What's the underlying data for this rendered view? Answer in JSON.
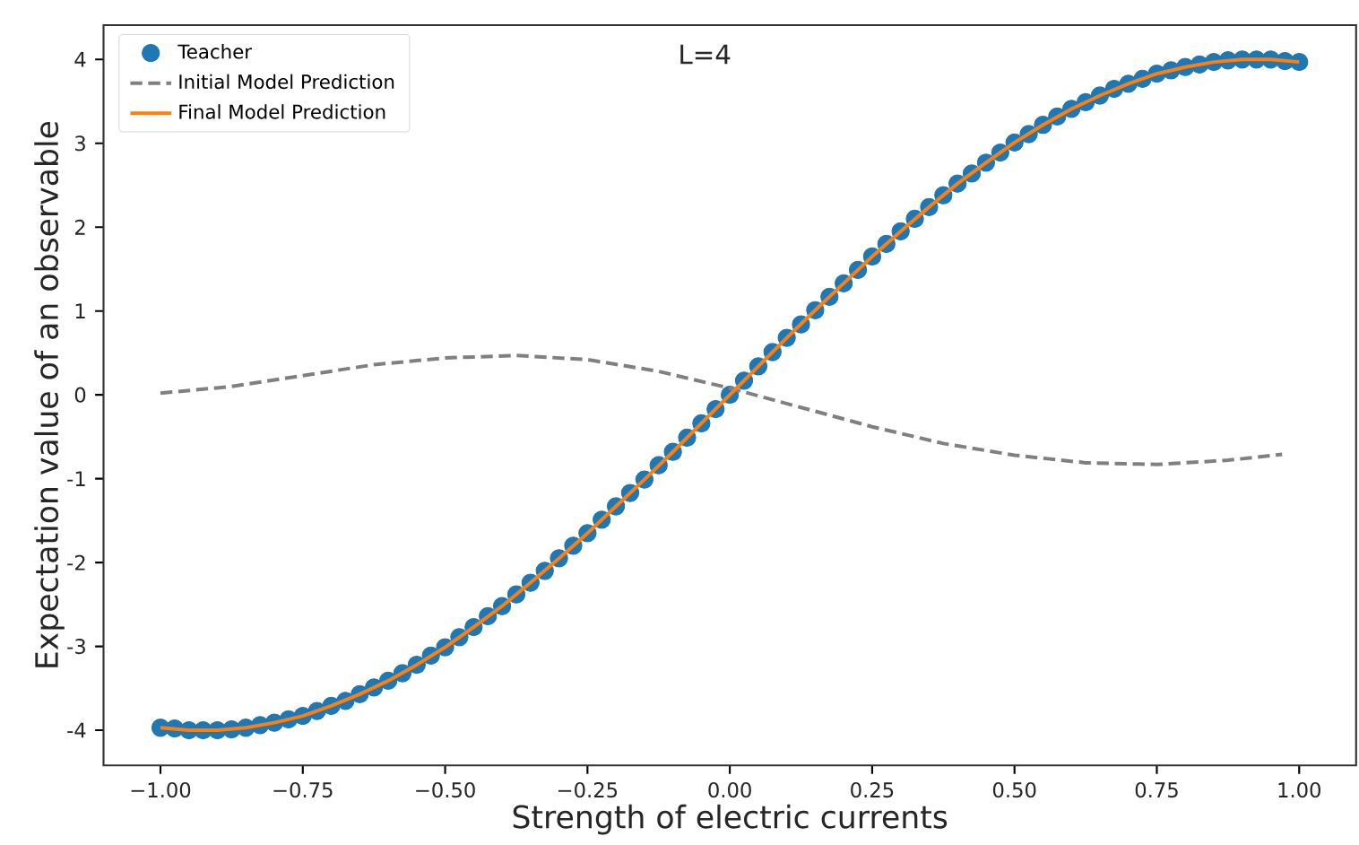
{
  "chart_data": {
    "type": "line",
    "xlabel": "Strength of electric currents",
    "ylabel": "Expectation value of an observable",
    "annotations": [
      "L=4"
    ],
    "xlim": [
      -1.1,
      1.1
    ],
    "ylim": [
      -4.42,
      4.41
    ],
    "xticks": [
      {
        "value": -1,
        "label": "−1.00"
      },
      {
        "value": -0.75,
        "label": "−0.75"
      },
      {
        "value": -0.5,
        "label": "−0.50"
      },
      {
        "value": -0.25,
        "label": "−0.25"
      },
      {
        "value": 0,
        "label": "0.00"
      },
      {
        "value": 0.25,
        "label": "0.25"
      },
      {
        "value": 0.5,
        "label": "0.50"
      },
      {
        "value": 0.75,
        "label": "0.75"
      },
      {
        "value": 1,
        "label": "1.00"
      }
    ],
    "yticks": [
      -4,
      -3,
      -2,
      -1,
      0,
      1,
      2,
      3,
      4
    ],
    "grid": false,
    "legend": "top left",
    "series": [
      {
        "name": "Teacher",
        "type": "scatter",
        "marker": "circle",
        "color": "#1f77b4",
        "x": [
          -1,
          -0.975,
          -0.95,
          -0.925,
          -0.9,
          -0.875,
          -0.85,
          -0.825,
          -0.8,
          -0.775,
          -0.75,
          -0.725,
          -0.7,
          -0.675,
          -0.65,
          -0.625,
          -0.6,
          -0.575,
          -0.55,
          -0.525,
          -0.5,
          -0.475,
          -0.45,
          -0.425,
          -0.4,
          -0.375,
          -0.35,
          -0.325,
          -0.3,
          -0.275,
          -0.25,
          -0.225,
          -0.2,
          -0.175,
          -0.15,
          -0.125,
          -0.1,
          -0.075,
          -0.05,
          -0.025,
          0,
          0.025,
          0.05,
          0.075,
          0.1,
          0.125,
          0.15,
          0.175,
          0.2,
          0.225,
          0.25,
          0.275,
          0.3,
          0.325,
          0.35,
          0.375,
          0.4,
          0.425,
          0.45,
          0.475,
          0.5,
          0.525,
          0.55,
          0.575,
          0.6,
          0.625,
          0.65,
          0.675,
          0.7,
          0.725,
          0.75,
          0.775,
          0.8,
          0.825,
          0.85,
          0.875,
          0.9,
          0.925,
          0.95,
          0.975,
          1
        ],
        "values": [
          -3.97,
          -3.98,
          -4.0,
          -4.0,
          -4.0,
          -3.99,
          -3.97,
          -3.94,
          -3.91,
          -3.87,
          -3.83,
          -3.77,
          -3.71,
          -3.65,
          -3.57,
          -3.49,
          -3.41,
          -3.32,
          -3.22,
          -3.11,
          -3.01,
          -2.89,
          -2.77,
          -2.64,
          -2.52,
          -2.38,
          -2.24,
          -2.1,
          -1.95,
          -1.8,
          -1.65,
          -1.49,
          -1.33,
          -1.17,
          -1.01,
          -0.84,
          -0.68,
          -0.51,
          -0.34,
          -0.17,
          0,
          0.17,
          0.34,
          0.51,
          0.68,
          0.84,
          1.01,
          1.17,
          1.33,
          1.49,
          1.65,
          1.8,
          1.95,
          2.1,
          2.24,
          2.38,
          2.52,
          2.64,
          2.77,
          2.89,
          3.01,
          3.11,
          3.22,
          3.32,
          3.41,
          3.49,
          3.57,
          3.65,
          3.71,
          3.77,
          3.83,
          3.87,
          3.91,
          3.94,
          3.97,
          3.99,
          4.0,
          4.0,
          4.0,
          3.98,
          3.97
        ]
      },
      {
        "name": "Initial Model Prediction",
        "type": "line",
        "line_style": "dashed",
        "marker": "none",
        "color": "#808080",
        "x": [
          -1,
          -0.875,
          -0.75,
          -0.625,
          -0.5,
          -0.375,
          -0.25,
          -0.125,
          0,
          0.125,
          0.25,
          0.375,
          0.5,
          0.625,
          0.75,
          0.875,
          0.97
        ],
        "values": [
          0.02,
          0.1,
          0.23,
          0.36,
          0.44,
          0.47,
          0.42,
          0.28,
          0.08,
          -0.15,
          -0.38,
          -0.58,
          -0.72,
          -0.81,
          -0.83,
          -0.78,
          -0.71
        ]
      },
      {
        "name": "Final Model Prediction",
        "type": "line",
        "line_style": "solid",
        "marker": "none",
        "color": "#ff7f0e",
        "x": [
          -1,
          -0.95,
          -0.9,
          -0.85,
          -0.8,
          -0.75,
          -0.7,
          -0.65,
          -0.6,
          -0.55,
          -0.5,
          -0.45,
          -0.4,
          -0.35,
          -0.3,
          -0.25,
          -0.2,
          -0.15,
          -0.1,
          -0.05,
          0,
          0.05,
          0.1,
          0.15,
          0.2,
          0.25,
          0.3,
          0.35,
          0.4,
          0.45,
          0.5,
          0.55,
          0.6,
          0.65,
          0.7,
          0.75,
          0.8,
          0.85,
          0.9,
          0.95,
          1
        ],
        "values": [
          -3.97,
          -4.0,
          -4.0,
          -3.97,
          -3.91,
          -3.83,
          -3.71,
          -3.57,
          -3.41,
          -3.22,
          -3.01,
          -2.77,
          -2.52,
          -2.24,
          -1.95,
          -1.65,
          -1.33,
          -1.01,
          -0.68,
          -0.34,
          0,
          0.34,
          0.68,
          1.01,
          1.33,
          1.65,
          1.95,
          2.24,
          2.52,
          2.77,
          3.01,
          3.22,
          3.41,
          3.57,
          3.71,
          3.83,
          3.91,
          3.97,
          4.0,
          4.0,
          3.97
        ]
      }
    ]
  }
}
